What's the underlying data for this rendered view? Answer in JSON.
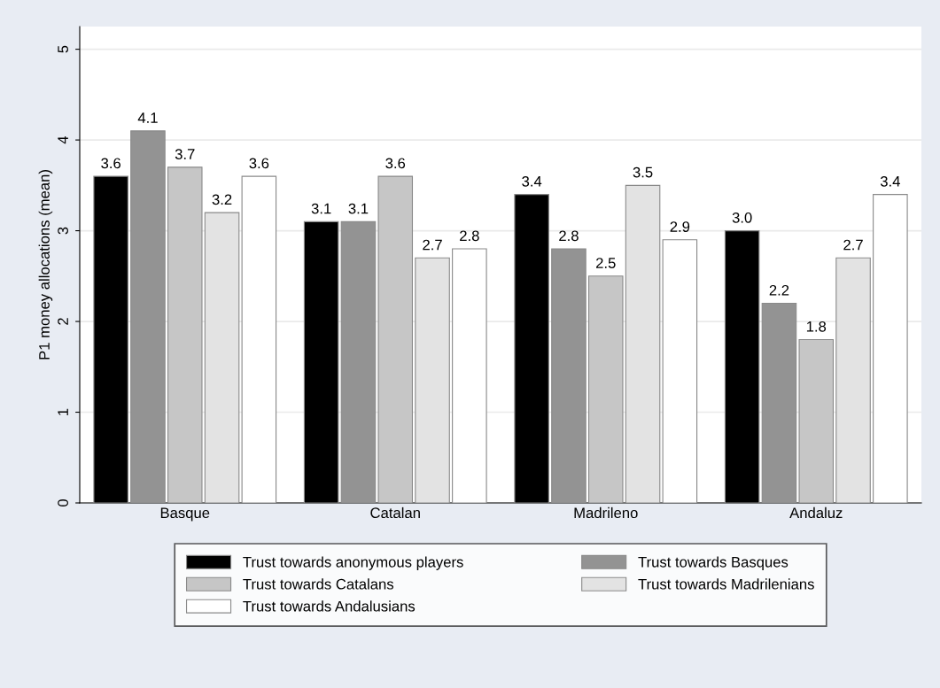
{
  "chart_data": {
    "type": "bar",
    "ylabel": "P1 money allocations (mean)",
    "categories": [
      "Basque",
      "Catalan",
      "Madrileno",
      "Andaluz"
    ],
    "series": [
      {
        "name": "Trust towards anonymous players",
        "color": "#000000",
        "values": [
          3.6,
          3.1,
          3.4,
          3.0
        ],
        "value_labels": [
          "3.6",
          "3.1",
          "3.4",
          "3.0"
        ]
      },
      {
        "name": "Trust towards Basques",
        "color": "#939393",
        "values": [
          4.1,
          3.1,
          2.8,
          2.2
        ],
        "value_labels": [
          "4.1",
          "3.1",
          "2.8",
          "2.2"
        ]
      },
      {
        "name": "Trust towards Catalans",
        "color": "#c6c6c6",
        "values": [
          3.7,
          3.6,
          2.5,
          1.8
        ],
        "value_labels": [
          "3.7",
          "3.6",
          "2.5",
          "1.8"
        ]
      },
      {
        "name": "Trust towards Madrilenians",
        "color": "#e3e3e3",
        "values": [
          3.2,
          2.7,
          3.5,
          2.7
        ],
        "value_labels": [
          "3.2",
          "2.7",
          "3.5",
          "2.7"
        ]
      },
      {
        "name": "Trust towards Andalusians",
        "color": "#ffffff",
        "values": [
          3.6,
          2.8,
          2.9,
          3.4
        ],
        "value_labels": [
          "3.6",
          "2.8",
          "2.9",
          "3.4"
        ]
      }
    ],
    "ylim": [
      0,
      5.25
    ],
    "yticks": [
      0,
      1,
      2,
      3,
      4,
      5
    ],
    "grid": "y",
    "legend": "bottom"
  }
}
